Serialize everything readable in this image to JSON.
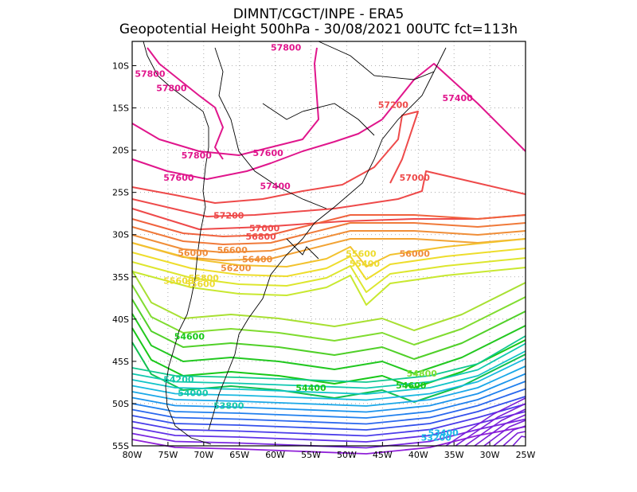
{
  "header": {
    "line1": "DIMNT/CGCT/INPE  -  ERA5",
    "line2": "Geopotential Height 500hPa  -   30/08/2021 00UTC fct=113h"
  },
  "map": {
    "variable": "Geopotential Height 500hPa",
    "lon_range": [
      -80,
      -25
    ],
    "lat_range": [
      -55,
      -7
    ],
    "lon_ticks": [
      "80W",
      "75W",
      "70W",
      "65W",
      "60W",
      "55W",
      "50W",
      "45W",
      "40W",
      "35W",
      "30W",
      "25W"
    ],
    "lat_ticks": [
      "10S",
      "15S",
      "20S",
      "25S",
      "30S",
      "35S",
      "40S",
      "45S",
      "50S",
      "55S"
    ],
    "grid": "dotted"
  },
  "chart_data": {
    "type": "contour",
    "units": "gpm (x10 in labels)",
    "contour_levels": [
      53200,
      53400,
      53600,
      53800,
      54000,
      54200,
      54400,
      54600,
      54800,
      55000,
      55200,
      55400,
      55600,
      55800,
      56000,
      56200,
      56400,
      56600,
      56800,
      57000,
      57200,
      57400,
      57600,
      57800
    ],
    "labels": [
      {
        "text": "57800",
        "lon": -58.5,
        "lat": -8.2,
        "color": "#e0168c"
      },
      {
        "text": "57800",
        "lon": -77.5,
        "lat": -11.3,
        "color": "#e0168c"
      },
      {
        "text": "57800",
        "lon": -74.5,
        "lat": -13.0,
        "color": "#e0168c"
      },
      {
        "text": "57400",
        "lon": -34.5,
        "lat": -14.2,
        "color": "#e0168c"
      },
      {
        "text": "57200",
        "lon": -43.5,
        "lat": -15.0,
        "color": "#ee4a4a"
      },
      {
        "text": "57800",
        "lon": -71.0,
        "lat": -21.0,
        "color": "#e0168c"
      },
      {
        "text": "57600",
        "lon": -61.0,
        "lat": -20.7,
        "color": "#e0168c"
      },
      {
        "text": "57600",
        "lon": -73.5,
        "lat": -23.6,
        "color": "#e0168c"
      },
      {
        "text": "57400",
        "lon": -60.0,
        "lat": -24.6,
        "color": "#e0168c"
      },
      {
        "text": "57000",
        "lon": -40.5,
        "lat": -23.6,
        "color": "#ee4a4a"
      },
      {
        "text": "57200",
        "lon": -66.5,
        "lat": -28.1,
        "color": "#ee4a4a"
      },
      {
        "text": "57000",
        "lon": -61.5,
        "lat": -29.6,
        "color": "#ee4a4a"
      },
      {
        "text": "56800",
        "lon": -62.0,
        "lat": -30.6,
        "color": "#ee4a4a"
      },
      {
        "text": "56600",
        "lon": -66.0,
        "lat": -32.2,
        "color": "#ef8b39"
      },
      {
        "text": "56000",
        "lon": -71.5,
        "lat": -32.5,
        "color": "#ef8b39"
      },
      {
        "text": "56400",
        "lon": -62.5,
        "lat": -33.3,
        "color": "#ef8b39"
      },
      {
        "text": "56200",
        "lon": -65.5,
        "lat": -34.3,
        "color": "#ef8b39"
      },
      {
        "text": "55600",
        "lon": -48.0,
        "lat": -32.6,
        "color": "#eddc2e"
      },
      {
        "text": "56000",
        "lon": -40.5,
        "lat": -32.6,
        "color": "#ef8b39"
      },
      {
        "text": "55400",
        "lon": -47.5,
        "lat": -33.8,
        "color": "#eddc2e"
      },
      {
        "text": "55800",
        "lon": -70.0,
        "lat": -35.5,
        "color": "#eddc2e"
      },
      {
        "text": "55600",
        "lon": -73.5,
        "lat": -35.8,
        "color": "#eddc2e"
      },
      {
        "text": "55600",
        "lon": -70.5,
        "lat": -36.2,
        "color": "#eddc2e"
      },
      {
        "text": "54600",
        "lon": -72.0,
        "lat": -42.4,
        "color": "#18c818"
      },
      {
        "text": "54800",
        "lon": -39.5,
        "lat": -46.8,
        "color": "#7ee030"
      },
      {
        "text": "54200",
        "lon": -73.5,
        "lat": -47.5,
        "color": "#12c8a8"
      },
      {
        "text": "54400",
        "lon": -55.0,
        "lat": -48.5,
        "color": "#18c818"
      },
      {
        "text": "54600",
        "lon": -41.0,
        "lat": -48.2,
        "color": "#18c818"
      },
      {
        "text": "54000",
        "lon": -71.5,
        "lat": -49.1,
        "color": "#12c8a8"
      },
      {
        "text": "53800",
        "lon": -66.5,
        "lat": -50.6,
        "color": "#12c8a8"
      },
      {
        "text": "53400",
        "lon": -36.5,
        "lat": -53.8,
        "color": "#1ab8e8"
      },
      {
        "text": "53200",
        "lon": -37.5,
        "lat": -54.4,
        "color": "#1ab8e8"
      }
    ]
  }
}
